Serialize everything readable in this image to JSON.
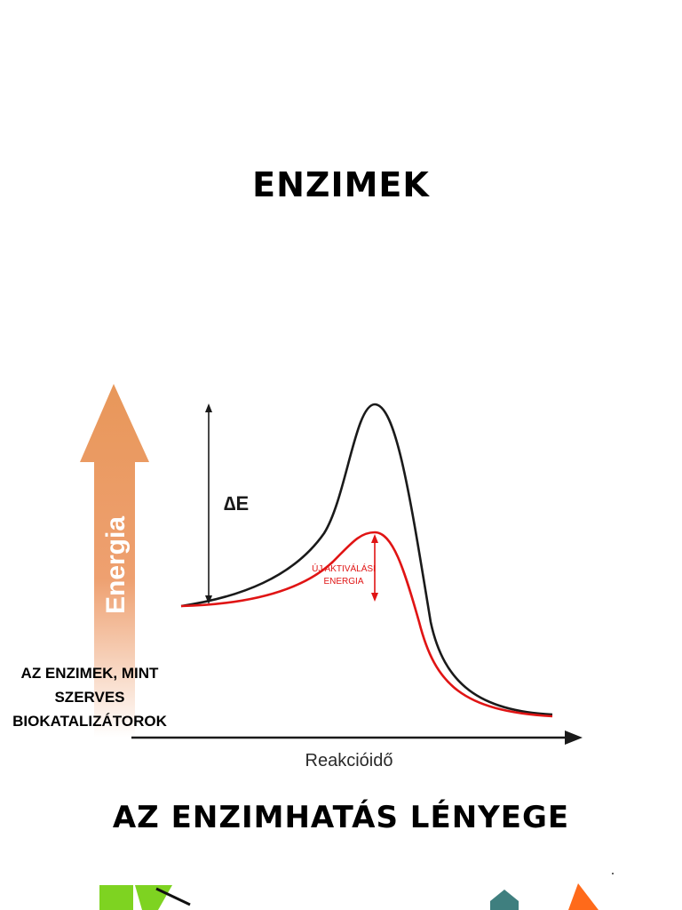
{
  "slide": {
    "title": "ENZIMEK",
    "subtitle": "AZ ENZIMHATÁS LÉNYEGE",
    "caption": "AZ ENZIMEK, MINT SZERVES BIOKATALIZÁTOROK"
  },
  "diagram": {
    "energy_arrow_label": "Energia",
    "delta_label": "∆E",
    "new_activation_label_line1": "ÚJ AKTIVÁLÁSI",
    "new_activation_label_line2": "ENERGIA",
    "x_axis_label": "Reakcióidő",
    "colors": {
      "energy_arrow_top": "#e8975a",
      "energy_arrow_bottom": "#ffffff",
      "uncatalyzed_curve": "#1a1a1a",
      "catalyzed_curve": "#e01414",
      "axis": "#1a1a1a"
    }
  },
  "decorations": {
    "bottom_left_shape_color": "#7ed321",
    "bottom_right_teal_color": "#3f7f7f",
    "bottom_right_orange_color": "#ff6a1a"
  }
}
